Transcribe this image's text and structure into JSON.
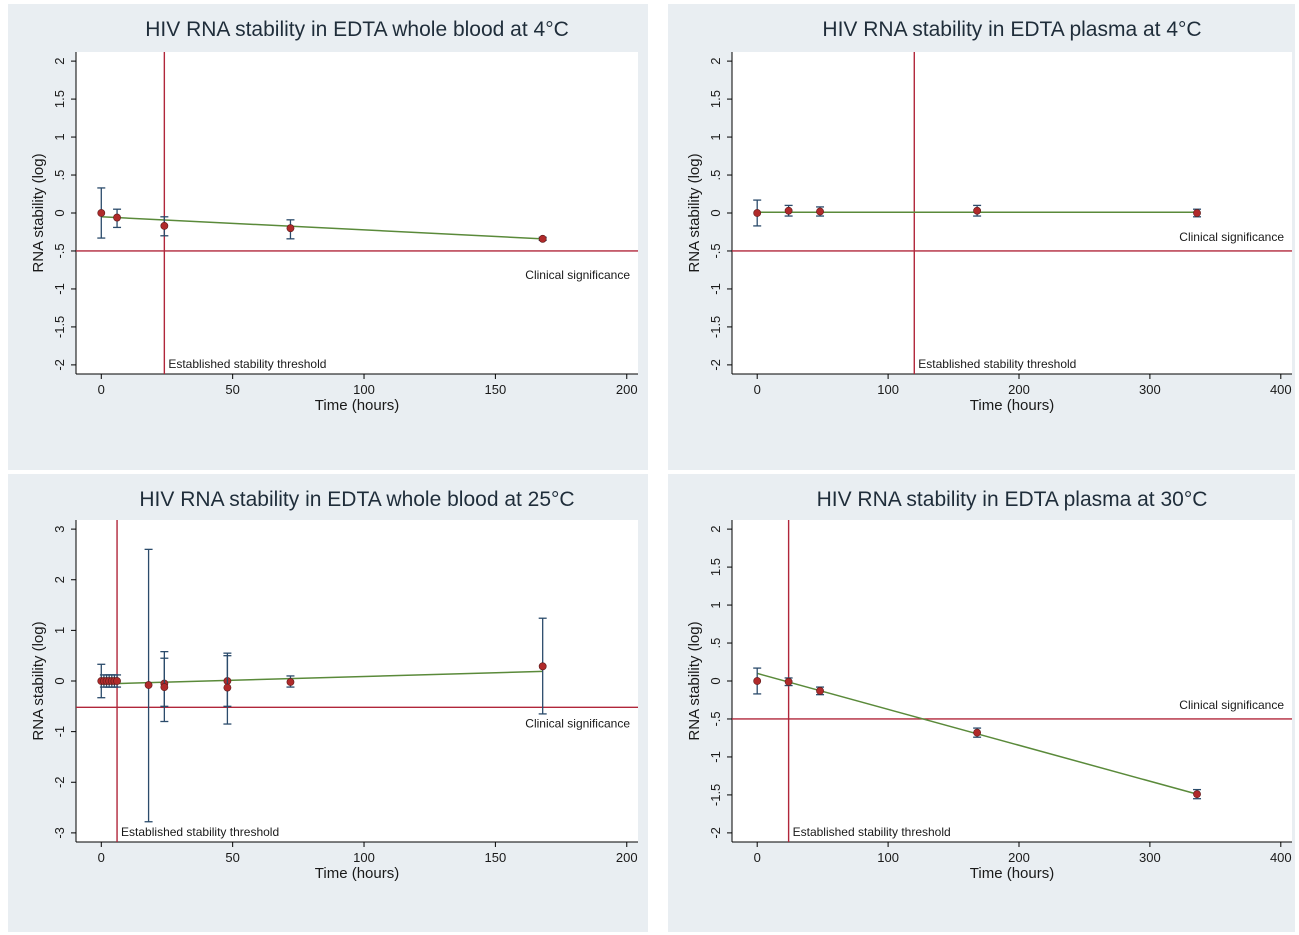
{
  "colors": {
    "panel_background": "#e9eef2",
    "plot_background": "#ffffff",
    "reference_line": "#b0263a",
    "fit_line": "#5a8a3a",
    "error_bar": "#2b4b6b",
    "point": "#b02a2a"
  },
  "chart_data": [
    {
      "type": "scatter",
      "title": "HIV RNA stability in EDTA whole blood at 4°C",
      "xlabel": "Time (hours)",
      "ylabel": "RNA stability (log)",
      "xlim": [
        0,
        200
      ],
      "ylim": [
        -2,
        2
      ],
      "xticks": [
        0,
        50,
        100,
        150,
        200
      ],
      "yticks": [
        -2,
        -1.5,
        -1,
        -0.5,
        0,
        0.5,
        1,
        1.5,
        2
      ],
      "ytick_labels": [
        "-2",
        "-1.5",
        "-1",
        "-.5",
        "0",
        ".5",
        "1",
        "1.5",
        "2"
      ],
      "points": [
        {
          "x": 0,
          "y": 0.0,
          "lo": -0.33,
          "hi": 0.33
        },
        {
          "x": 6,
          "y": -0.06,
          "lo": -0.19,
          "hi": 0.05
        },
        {
          "x": 24,
          "y": -0.17,
          "lo": -0.3,
          "hi": -0.05
        },
        {
          "x": 72,
          "y": -0.2,
          "lo": -0.34,
          "hi": -0.09
        },
        {
          "x": 168,
          "y": -0.34,
          "lo": -0.36,
          "hi": -0.32
        }
      ],
      "fit_line": {
        "x": [
          0,
          168
        ],
        "y": [
          -0.05,
          -0.34
        ]
      },
      "clinical_significance_y": -0.5,
      "clinical_significance_label": "Clinical significance",
      "stability_threshold_x": 24,
      "stability_threshold_label": "Established stability threshold"
    },
    {
      "type": "scatter",
      "title": "HIV RNA stability in EDTA plasma at 4°C",
      "xlabel": "Time (hours)",
      "ylabel": "RNA stability (log)",
      "xlim": [
        0,
        400
      ],
      "ylim": [
        -2,
        2
      ],
      "xticks": [
        0,
        100,
        200,
        300,
        400
      ],
      "yticks": [
        -2,
        -1.5,
        -1,
        -0.5,
        0,
        0.5,
        1,
        1.5,
        2
      ],
      "ytick_labels": [
        "-2",
        "-1.5",
        "-1",
        "-.5",
        "0",
        ".5",
        "1",
        "1.5",
        "2"
      ],
      "points": [
        {
          "x": 0,
          "y": 0.0,
          "lo": -0.17,
          "hi": 0.17
        },
        {
          "x": 24,
          "y": 0.03,
          "lo": -0.04,
          "hi": 0.1
        },
        {
          "x": 48,
          "y": 0.02,
          "lo": -0.04,
          "hi": 0.08
        },
        {
          "x": 168,
          "y": 0.03,
          "lo": -0.04,
          "hi": 0.1
        },
        {
          "x": 336,
          "y": 0.0,
          "lo": -0.05,
          "hi": 0.05
        }
      ],
      "fit_line": {
        "x": [
          0,
          336
        ],
        "y": [
          0.01,
          0.01
        ]
      },
      "clinical_significance_y": -0.5,
      "clinical_significance_label": "Clinical significance",
      "stability_threshold_x": 120,
      "stability_threshold_label": "Established stability threshold"
    },
    {
      "type": "scatter",
      "title": "HIV RNA stability in EDTA whole blood at 25°C",
      "xlabel": "Time (hours)",
      "ylabel": "RNA stability (log)",
      "xlim": [
        0,
        200
      ],
      "ylim": [
        -3,
        3
      ],
      "xticks": [
        0,
        50,
        100,
        150,
        200
      ],
      "yticks": [
        -3,
        -2,
        -1,
        0,
        1,
        2,
        3
      ],
      "ytick_labels": [
        "-3",
        "-2",
        "-1",
        "0",
        "1",
        "2",
        "3"
      ],
      "points": [
        {
          "x": 0,
          "y": 0.0,
          "lo": -0.33,
          "hi": 0.33
        },
        {
          "x": 1,
          "y": 0.0,
          "lo": -0.12,
          "hi": 0.12
        },
        {
          "x": 2,
          "y": 0.0,
          "lo": -0.12,
          "hi": 0.12
        },
        {
          "x": 3,
          "y": 0.0,
          "lo": -0.12,
          "hi": 0.12
        },
        {
          "x": 4,
          "y": 0.0,
          "lo": -0.12,
          "hi": 0.12
        },
        {
          "x": 5,
          "y": 0.0,
          "lo": -0.12,
          "hi": 0.12
        },
        {
          "x": 6,
          "y": 0.0,
          "lo": -0.12,
          "hi": 0.12
        },
        {
          "x": 18,
          "y": -0.08,
          "lo": -2.78,
          "hi": 2.6
        },
        {
          "x": 24,
          "y": -0.05,
          "lo": -0.5,
          "hi": 0.58
        },
        {
          "x": 24,
          "y": -0.12,
          "lo": -0.8,
          "hi": 0.45
        },
        {
          "x": 48,
          "y": 0.0,
          "lo": -0.5,
          "hi": 0.55
        },
        {
          "x": 48,
          "y": -0.13,
          "lo": -0.85,
          "hi": 0.5
        },
        {
          "x": 72,
          "y": -0.02,
          "lo": -0.12,
          "hi": 0.1
        },
        {
          "x": 168,
          "y": 0.29,
          "lo": -0.65,
          "hi": 1.24
        }
      ],
      "fit_line": {
        "x": [
          0,
          168
        ],
        "y": [
          -0.06,
          0.19
        ]
      },
      "clinical_significance_y": -0.52,
      "clinical_significance_label": "Clinical significance",
      "stability_threshold_x": 6,
      "stability_threshold_label": "Established stability threshold"
    },
    {
      "type": "scatter",
      "title": "HIV RNA stability in EDTA plasma at 30°C",
      "xlabel": "Time (hours)",
      "ylabel": "RNA stability (log)",
      "xlim": [
        0,
        400
      ],
      "ylim": [
        -2,
        2
      ],
      "xticks": [
        0,
        100,
        200,
        300,
        400
      ],
      "yticks": [
        -2,
        -1.5,
        -1,
        -0.5,
        0,
        0.5,
        1,
        1.5,
        2
      ],
      "ytick_labels": [
        "-2",
        "-1.5",
        "-1",
        "-.5",
        "0",
        ".5",
        "1",
        "1.5",
        "2"
      ],
      "points": [
        {
          "x": 0,
          "y": 0.0,
          "lo": -0.17,
          "hi": 0.17
        },
        {
          "x": 24,
          "y": -0.01,
          "lo": -0.06,
          "hi": 0.04
        },
        {
          "x": 48,
          "y": -0.13,
          "lo": -0.18,
          "hi": -0.08
        },
        {
          "x": 168,
          "y": -0.68,
          "lo": -0.74,
          "hi": -0.62
        },
        {
          "x": 336,
          "y": -1.49,
          "lo": -1.55,
          "hi": -1.43
        }
      ],
      "fit_line": {
        "x": [
          0,
          336
        ],
        "y": [
          0.1,
          -1.49
        ]
      },
      "clinical_significance_y": -0.5,
      "clinical_significance_label": "Clinical significance",
      "stability_threshold_x": 24,
      "stability_threshold_label": "Established stability threshold"
    }
  ]
}
